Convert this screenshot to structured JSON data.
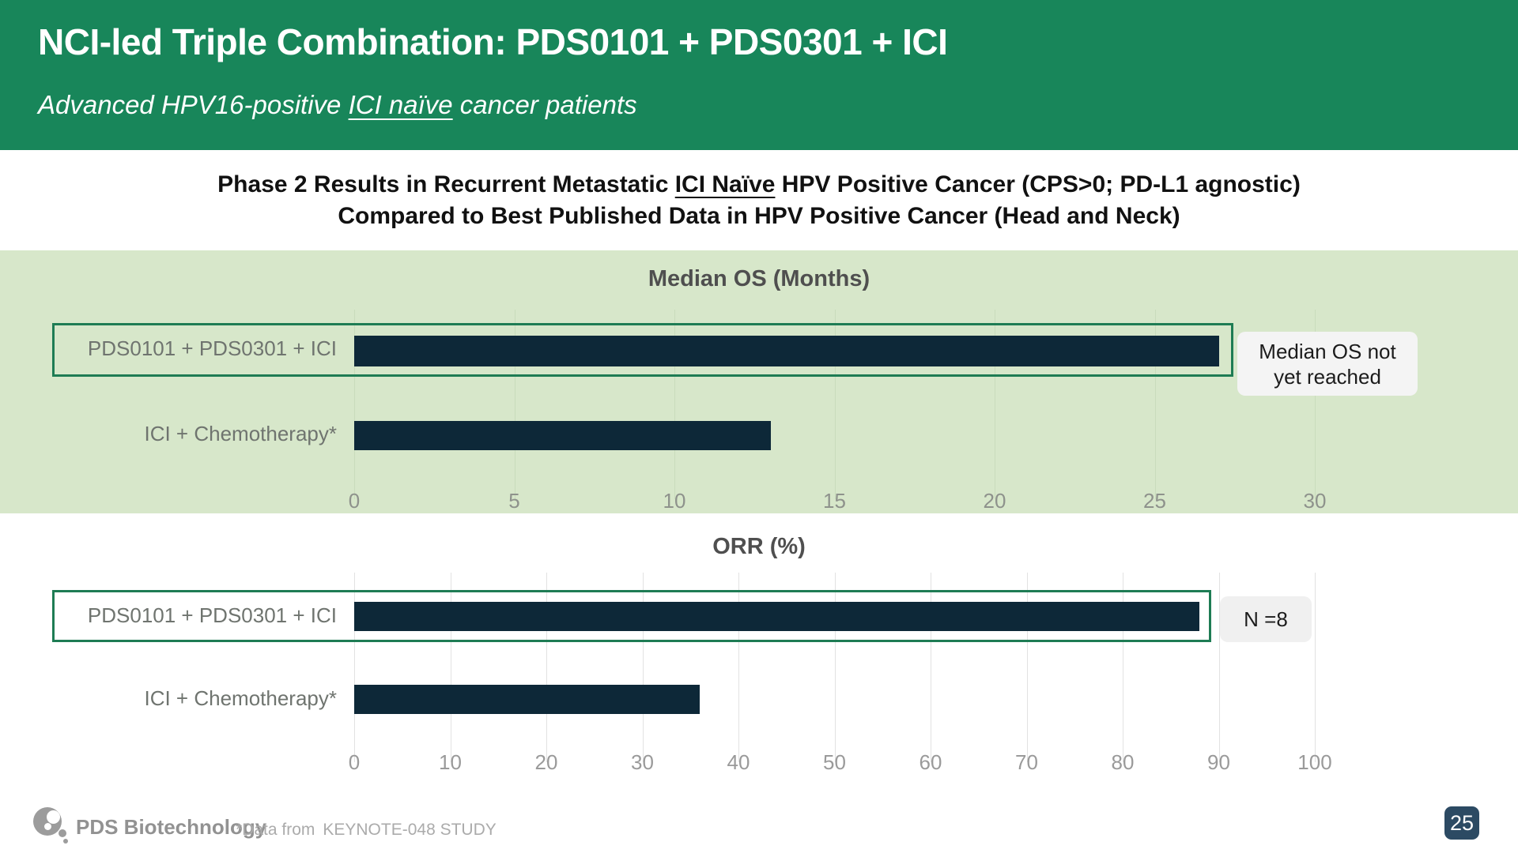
{
  "header": {
    "title": "NCI-led Triple Combination: PDS0101 + PDS0301 + ICI",
    "subtitle_prefix": "Advanced HPV16-positive ",
    "subtitle_underlined": "ICI naïve",
    "subtitle_suffix": " cancer patients"
  },
  "section_title": {
    "line1_prefix": "Phase 2 Results in Recurrent Metastatic ",
    "line1_underlined": "ICI Naïve",
    "line1_suffix": " HPV Positive Cancer (CPS>0; PD-L1 agnostic)",
    "line2": "Compared to Best Published Data in HPV Positive Cancer (Head and Neck)"
  },
  "chart_data": [
    {
      "type": "bar",
      "orientation": "horizontal",
      "title": "Median OS (Months)",
      "categories": [
        "PDS0101 + PDS0301 + ICI",
        "ICI + Chemotherapy*"
      ],
      "values": [
        27,
        13
      ],
      "xlim": [
        0,
        30
      ],
      "xticks": [
        0,
        5,
        10,
        15,
        20,
        25,
        30
      ],
      "grid": true,
      "bar_color": "#0D2838",
      "background": "#D7E7CA",
      "annotation": "Median OS not\nyet reached",
      "annotation_meaning": "top bar drawn to ~27 months but median OS not yet reached",
      "highlighted_category": "PDS0101 + PDS0301 + ICI"
    },
    {
      "type": "bar",
      "orientation": "horizontal",
      "title": "ORR (%)",
      "categories": [
        "PDS0101 + PDS0301 + ICI",
        "ICI + Chemotherapy*"
      ],
      "values": [
        88,
        36
      ],
      "xlim": [
        0,
        100
      ],
      "xticks": [
        0,
        10,
        20,
        30,
        40,
        50,
        60,
        70,
        80,
        90,
        100
      ],
      "grid": true,
      "bar_color": "#0D2838",
      "background": "#ffffff",
      "annotation": "N =8",
      "highlighted_category": "PDS0101 + PDS0301 + ICI"
    }
  ],
  "charts": [
    {
      "title": "Median OS (Months)",
      "row1_label": "PDS0101 + PDS0301 + ICI",
      "row2_label": "ICI + Chemotherapy*",
      "annotation_line1": "Median OS not",
      "annotation_line2": "yet reached"
    },
    {
      "title": "ORR (%)",
      "row1_label": "PDS0101 + PDS0301 + ICI",
      "row2_label": "ICI + Chemotherapy*",
      "annotation": "N =8"
    }
  ],
  "footer": {
    "logo_text": "PDS Biotechnology",
    "data_note_prefix": "*Data from",
    "data_note_study": "KEYNOTE-048 STUDY",
    "page_number": "25"
  },
  "colors": {
    "header_green": "#18865A",
    "chart_band_green": "#D7E7CA",
    "bar_navy": "#0D2838",
    "highlight_border_green": "#1E7C54",
    "page_badge_navy": "#2C4A63"
  }
}
